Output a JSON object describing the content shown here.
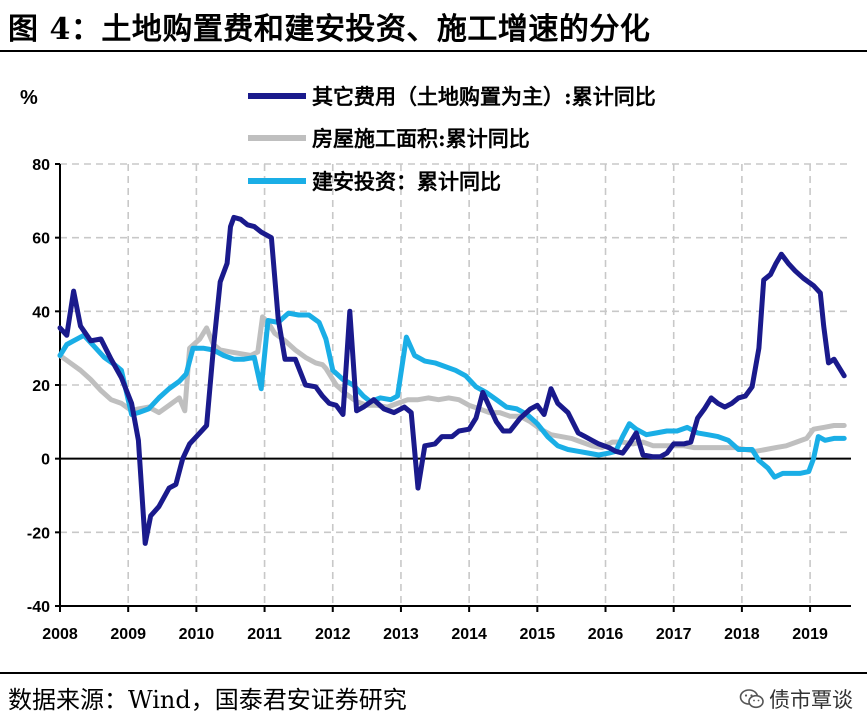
{
  "title": "图 4：土地购置费和建安投资、施工增速的分化",
  "source": "数据来源：Wind，国泰君安证券研究",
  "watermark": "债市覃谈",
  "colors": {
    "other_fees": "#1a1a8c",
    "floor_area": "#bfbfbf",
    "construction": "#1aaee6"
  },
  "chart_data": {
    "type": "line",
    "ylabel": "%",
    "ylim": [
      -40,
      80
    ],
    "yticks": [
      -40,
      -20,
      0,
      20,
      40,
      60,
      80
    ],
    "xlim": [
      2008,
      2019.6
    ],
    "xticks": [
      "2008",
      "2009",
      "2010",
      "2011",
      "2012",
      "2013",
      "2014",
      "2015",
      "2016",
      "2017",
      "2018",
      "2019"
    ],
    "grid": true,
    "legend_position": "top",
    "series": [
      {
        "name": "其它费用（土地购置为主）:累计同比",
        "color_key": "other_fees",
        "points": [
          [
            2008.0,
            35.5
          ],
          [
            2008.1,
            33.5
          ],
          [
            2008.2,
            45.5
          ],
          [
            2008.3,
            36
          ],
          [
            2008.45,
            32
          ],
          [
            2008.6,
            32.5
          ],
          [
            2008.75,
            27
          ],
          [
            2008.9,
            22
          ],
          [
            2009.05,
            15
          ],
          [
            2009.15,
            5
          ],
          [
            2009.25,
            -23
          ],
          [
            2009.33,
            -15.5
          ],
          [
            2009.45,
            -13
          ],
          [
            2009.6,
            -8
          ],
          [
            2009.7,
            -7
          ],
          [
            2009.8,
            0
          ],
          [
            2009.9,
            4
          ],
          [
            2010.05,
            7
          ],
          [
            2010.15,
            9
          ],
          [
            2010.25,
            30
          ],
          [
            2010.35,
            48
          ],
          [
            2010.45,
            53
          ],
          [
            2010.5,
            63
          ],
          [
            2010.55,
            65.5
          ],
          [
            2010.65,
            65
          ],
          [
            2010.75,
            63.5
          ],
          [
            2010.85,
            63
          ],
          [
            2010.95,
            61.5
          ],
          [
            2011.1,
            60
          ],
          [
            2011.2,
            38
          ],
          [
            2011.3,
            27
          ],
          [
            2011.45,
            27
          ],
          [
            2011.6,
            20
          ],
          [
            2011.75,
            19.5
          ],
          [
            2011.85,
            17
          ],
          [
            2011.95,
            15
          ],
          [
            2012.05,
            14.5
          ],
          [
            2012.15,
            12
          ],
          [
            2012.25,
            40
          ],
          [
            2012.35,
            13
          ],
          [
            2012.45,
            14
          ],
          [
            2012.6,
            16
          ],
          [
            2012.75,
            13.5
          ],
          [
            2012.9,
            12.5
          ],
          [
            2013.05,
            14
          ],
          [
            2013.15,
            12.5
          ],
          [
            2013.25,
            -8
          ],
          [
            2013.35,
            3.5
          ],
          [
            2013.5,
            4
          ],
          [
            2013.6,
            6
          ],
          [
            2013.75,
            6
          ],
          [
            2013.85,
            7.5
          ],
          [
            2014.0,
            8
          ],
          [
            2014.1,
            11
          ],
          [
            2014.2,
            18
          ],
          [
            2014.3,
            14
          ],
          [
            2014.4,
            10
          ],
          [
            2014.5,
            7.5
          ],
          [
            2014.6,
            7.5
          ],
          [
            2014.75,
            11
          ],
          [
            2014.9,
            13.5
          ],
          [
            2015.0,
            14.5
          ],
          [
            2015.1,
            12
          ],
          [
            2015.2,
            19
          ],
          [
            2015.3,
            15
          ],
          [
            2015.45,
            12.5
          ],
          [
            2015.6,
            7
          ],
          [
            2015.7,
            6
          ],
          [
            2015.8,
            5
          ],
          [
            2015.9,
            4
          ],
          [
            2016.05,
            3
          ],
          [
            2016.15,
            2
          ],
          [
            2016.25,
            1.5
          ],
          [
            2016.35,
            4
          ],
          [
            2016.45,
            7
          ],
          [
            2016.55,
            1
          ],
          [
            2016.7,
            0.5
          ],
          [
            2016.8,
            0.5
          ],
          [
            2016.9,
            1.5
          ],
          [
            2017.0,
            4
          ],
          [
            2017.15,
            4
          ],
          [
            2017.25,
            4.5
          ],
          [
            2017.35,
            11
          ],
          [
            2017.45,
            13.5
          ],
          [
            2017.55,
            16.5
          ],
          [
            2017.65,
            15
          ],
          [
            2017.75,
            14
          ],
          [
            2017.85,
            15
          ],
          [
            2017.95,
            16.5
          ],
          [
            2018.05,
            17
          ],
          [
            2018.15,
            19.5
          ],
          [
            2018.25,
            30
          ],
          [
            2018.32,
            48.5
          ],
          [
            2018.42,
            50
          ],
          [
            2018.5,
            53
          ],
          [
            2018.58,
            55.5
          ],
          [
            2018.68,
            53
          ],
          [
            2018.78,
            51
          ],
          [
            2018.9,
            49
          ],
          [
            2019.05,
            47
          ],
          [
            2019.15,
            45
          ],
          [
            2019.2,
            36
          ],
          [
            2019.27,
            26
          ],
          [
            2019.35,
            27
          ],
          [
            2019.5,
            22.5
          ]
        ]
      },
      {
        "name": "房屋施工面积:累计同比",
        "color_key": "floor_area",
        "points": [
          [
            2008.0,
            28
          ],
          [
            2008.15,
            26
          ],
          [
            2008.3,
            24
          ],
          [
            2008.45,
            21.5
          ],
          [
            2008.6,
            18.5
          ],
          [
            2008.75,
            16
          ],
          [
            2008.9,
            15
          ],
          [
            2009.05,
            13
          ],
          [
            2009.15,
            13.5
          ],
          [
            2009.3,
            14
          ],
          [
            2009.45,
            12.5
          ],
          [
            2009.6,
            14.5
          ],
          [
            2009.75,
            16.5
          ],
          [
            2009.83,
            13
          ],
          [
            2009.9,
            30
          ],
          [
            2010.05,
            32.5
          ],
          [
            2010.15,
            35.5
          ],
          [
            2010.25,
            31
          ],
          [
            2010.35,
            29.5
          ],
          [
            2010.5,
            29
          ],
          [
            2010.65,
            28.5
          ],
          [
            2010.8,
            28
          ],
          [
            2010.9,
            29
          ],
          [
            2010.97,
            38.5
          ],
          [
            2011.05,
            37
          ],
          [
            2011.15,
            34
          ],
          [
            2011.3,
            32
          ],
          [
            2011.45,
            29.5
          ],
          [
            2011.6,
            27.5
          ],
          [
            2011.75,
            26
          ],
          [
            2011.85,
            25.5
          ],
          [
            2011.9,
            24.5
          ],
          [
            2012.05,
            20
          ],
          [
            2012.2,
            17.5
          ],
          [
            2012.35,
            15.5
          ],
          [
            2012.5,
            14.5
          ],
          [
            2012.65,
            14.5
          ],
          [
            2012.8,
            14
          ],
          [
            2012.95,
            15
          ],
          [
            2013.1,
            16
          ],
          [
            2013.25,
            16
          ],
          [
            2013.4,
            16.5
          ],
          [
            2013.55,
            16
          ],
          [
            2013.7,
            16.5
          ],
          [
            2013.85,
            16
          ],
          [
            2014.0,
            14.5
          ],
          [
            2014.15,
            13.5
          ],
          [
            2014.3,
            12.5
          ],
          [
            2014.45,
            12.5
          ],
          [
            2014.6,
            11.5
          ],
          [
            2014.75,
            11.5
          ],
          [
            2014.9,
            10
          ],
          [
            2015.05,
            8
          ],
          [
            2015.2,
            6.5
          ],
          [
            2015.35,
            6
          ],
          [
            2015.5,
            5.5
          ],
          [
            2015.65,
            4.5
          ],
          [
            2015.8,
            3.5
          ],
          [
            2015.95,
            3
          ],
          [
            2016.1,
            4.5
          ],
          [
            2016.25,
            4.5
          ],
          [
            2016.4,
            4
          ],
          [
            2016.55,
            4.5
          ],
          [
            2016.7,
            3.5
          ],
          [
            2016.85,
            3.5
          ],
          [
            2017.0,
            3.5
          ],
          [
            2017.15,
            3.5
          ],
          [
            2017.3,
            3
          ],
          [
            2017.45,
            3
          ],
          [
            2017.6,
            3
          ],
          [
            2017.75,
            3
          ],
          [
            2017.9,
            3
          ],
          [
            2018.05,
            2.5
          ],
          [
            2018.2,
            2
          ],
          [
            2018.35,
            2.5
          ],
          [
            2018.5,
            3
          ],
          [
            2018.65,
            3.5
          ],
          [
            2018.8,
            4.5
          ],
          [
            2018.95,
            5.5
          ],
          [
            2019.05,
            8
          ],
          [
            2019.2,
            8.5
          ],
          [
            2019.35,
            9
          ],
          [
            2019.5,
            9
          ]
        ]
      },
      {
        "name": "建安投资：累计同比",
        "color_key": "construction",
        "points": [
          [
            2008.0,
            28
          ],
          [
            2008.1,
            31
          ],
          [
            2008.2,
            32
          ],
          [
            2008.35,
            33.5
          ],
          [
            2008.5,
            30.5
          ],
          [
            2008.65,
            27.5
          ],
          [
            2008.8,
            25.5
          ],
          [
            2008.9,
            24
          ],
          [
            2009.05,
            12
          ],
          [
            2009.15,
            12.5
          ],
          [
            2009.3,
            13.5
          ],
          [
            2009.45,
            16.5
          ],
          [
            2009.6,
            19
          ],
          [
            2009.75,
            21
          ],
          [
            2009.85,
            23
          ],
          [
            2009.95,
            30
          ],
          [
            2010.1,
            30
          ],
          [
            2010.25,
            29.5
          ],
          [
            2010.4,
            28
          ],
          [
            2010.55,
            27
          ],
          [
            2010.7,
            27
          ],
          [
            2010.85,
            27.5
          ],
          [
            2010.95,
            19
          ],
          [
            2011.05,
            37.5
          ],
          [
            2011.2,
            37
          ],
          [
            2011.35,
            39.5
          ],
          [
            2011.5,
            39
          ],
          [
            2011.65,
            39
          ],
          [
            2011.8,
            37
          ],
          [
            2011.9,
            32.5
          ],
          [
            2012.0,
            24
          ],
          [
            2012.15,
            21.5
          ],
          [
            2012.3,
            20
          ],
          [
            2012.45,
            17
          ],
          [
            2012.55,
            15.5
          ],
          [
            2012.7,
            16.5
          ],
          [
            2012.85,
            16
          ],
          [
            2012.95,
            17
          ],
          [
            2013.08,
            33
          ],
          [
            2013.2,
            28
          ],
          [
            2013.35,
            26.5
          ],
          [
            2013.5,
            26
          ],
          [
            2013.65,
            25
          ],
          [
            2013.8,
            24
          ],
          [
            2013.95,
            22.5
          ],
          [
            2014.1,
            19.5
          ],
          [
            2014.25,
            18
          ],
          [
            2014.4,
            16
          ],
          [
            2014.55,
            14
          ],
          [
            2014.7,
            13.5
          ],
          [
            2014.85,
            12
          ],
          [
            2015.0,
            9.5
          ],
          [
            2015.15,
            6
          ],
          [
            2015.3,
            3.5
          ],
          [
            2015.45,
            2.5
          ],
          [
            2015.6,
            2
          ],
          [
            2015.75,
            1.5
          ],
          [
            2015.9,
            1
          ],
          [
            2016.05,
            1.5
          ],
          [
            2016.15,
            2
          ],
          [
            2016.25,
            6
          ],
          [
            2016.35,
            9.5
          ],
          [
            2016.45,
            8
          ],
          [
            2016.6,
            6.5
          ],
          [
            2016.75,
            7
          ],
          [
            2016.9,
            7.5
          ],
          [
            2017.05,
            7.5
          ],
          [
            2017.2,
            8.5
          ],
          [
            2017.35,
            7
          ],
          [
            2017.5,
            6.5
          ],
          [
            2017.65,
            6
          ],
          [
            2017.8,
            5
          ],
          [
            2017.95,
            2.5
          ],
          [
            2018.05,
            2.5
          ],
          [
            2018.15,
            2.5
          ],
          [
            2018.25,
            -0.5
          ],
          [
            2018.38,
            -2.5
          ],
          [
            2018.48,
            -5
          ],
          [
            2018.6,
            -4
          ],
          [
            2018.72,
            -4
          ],
          [
            2018.85,
            -4
          ],
          [
            2018.98,
            -3.5
          ],
          [
            2019.05,
            0
          ],
          [
            2019.12,
            6
          ],
          [
            2019.22,
            5
          ],
          [
            2019.35,
            5.5
          ],
          [
            2019.5,
            5.5
          ]
        ]
      }
    ]
  }
}
